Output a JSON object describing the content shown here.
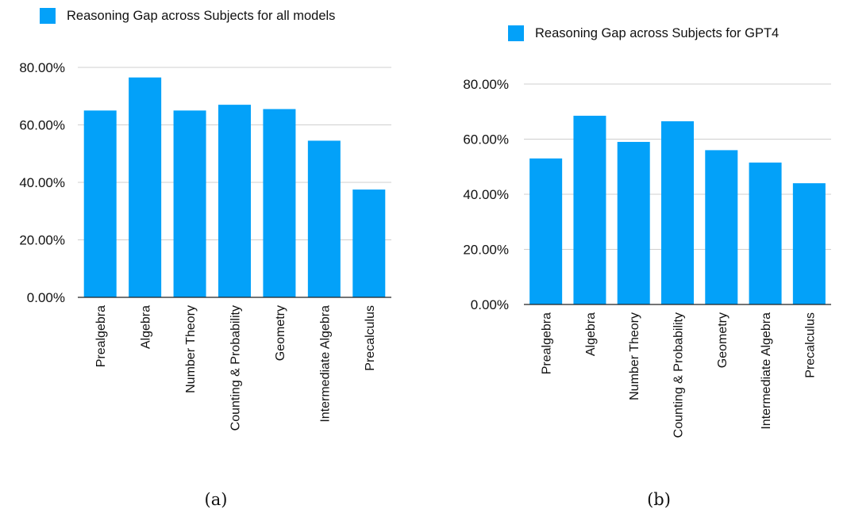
{
  "chart_data": [
    {
      "type": "bar",
      "legend": "Reasoning Gap across Subjects for all models",
      "categories": [
        "Prealgebra",
        "Algebra",
        "Number Theory",
        "Counting & Probability",
        "Geometry",
        "Intermediate Algebra",
        "Precalculus"
      ],
      "values": [
        0.65,
        0.765,
        0.65,
        0.67,
        0.655,
        0.545,
        0.375
      ],
      "ylim": [
        0,
        0.8
      ],
      "yticks": [
        0,
        0.2,
        0.4,
        0.6,
        0.8
      ],
      "ytick_labels": [
        "0.00%",
        "20.00%",
        "40.00%",
        "60.00%",
        "80.00%"
      ],
      "grid": true,
      "legend_position": "top-left",
      "caption": "(a)",
      "color": "#03a1f9"
    },
    {
      "type": "bar",
      "legend": "Reasoning Gap across Subjects for GPT4",
      "categories": [
        "Prealgebra",
        "Algebra",
        "Number Theory",
        "Counting & Probability",
        "Geometry",
        "Intermediate Algebra",
        "Precalculus"
      ],
      "values": [
        0.53,
        0.685,
        0.59,
        0.665,
        0.56,
        0.515,
        0.44
      ],
      "ylim": [
        0,
        0.8
      ],
      "yticks": [
        0,
        0.2,
        0.4,
        0.6,
        0.8
      ],
      "ytick_labels": [
        "0.00%",
        "20.00%",
        "40.00%",
        "60.00%",
        "80.00%"
      ],
      "grid": true,
      "legend_position": "top-left",
      "caption": "(b)",
      "color": "#03a1f9"
    }
  ]
}
